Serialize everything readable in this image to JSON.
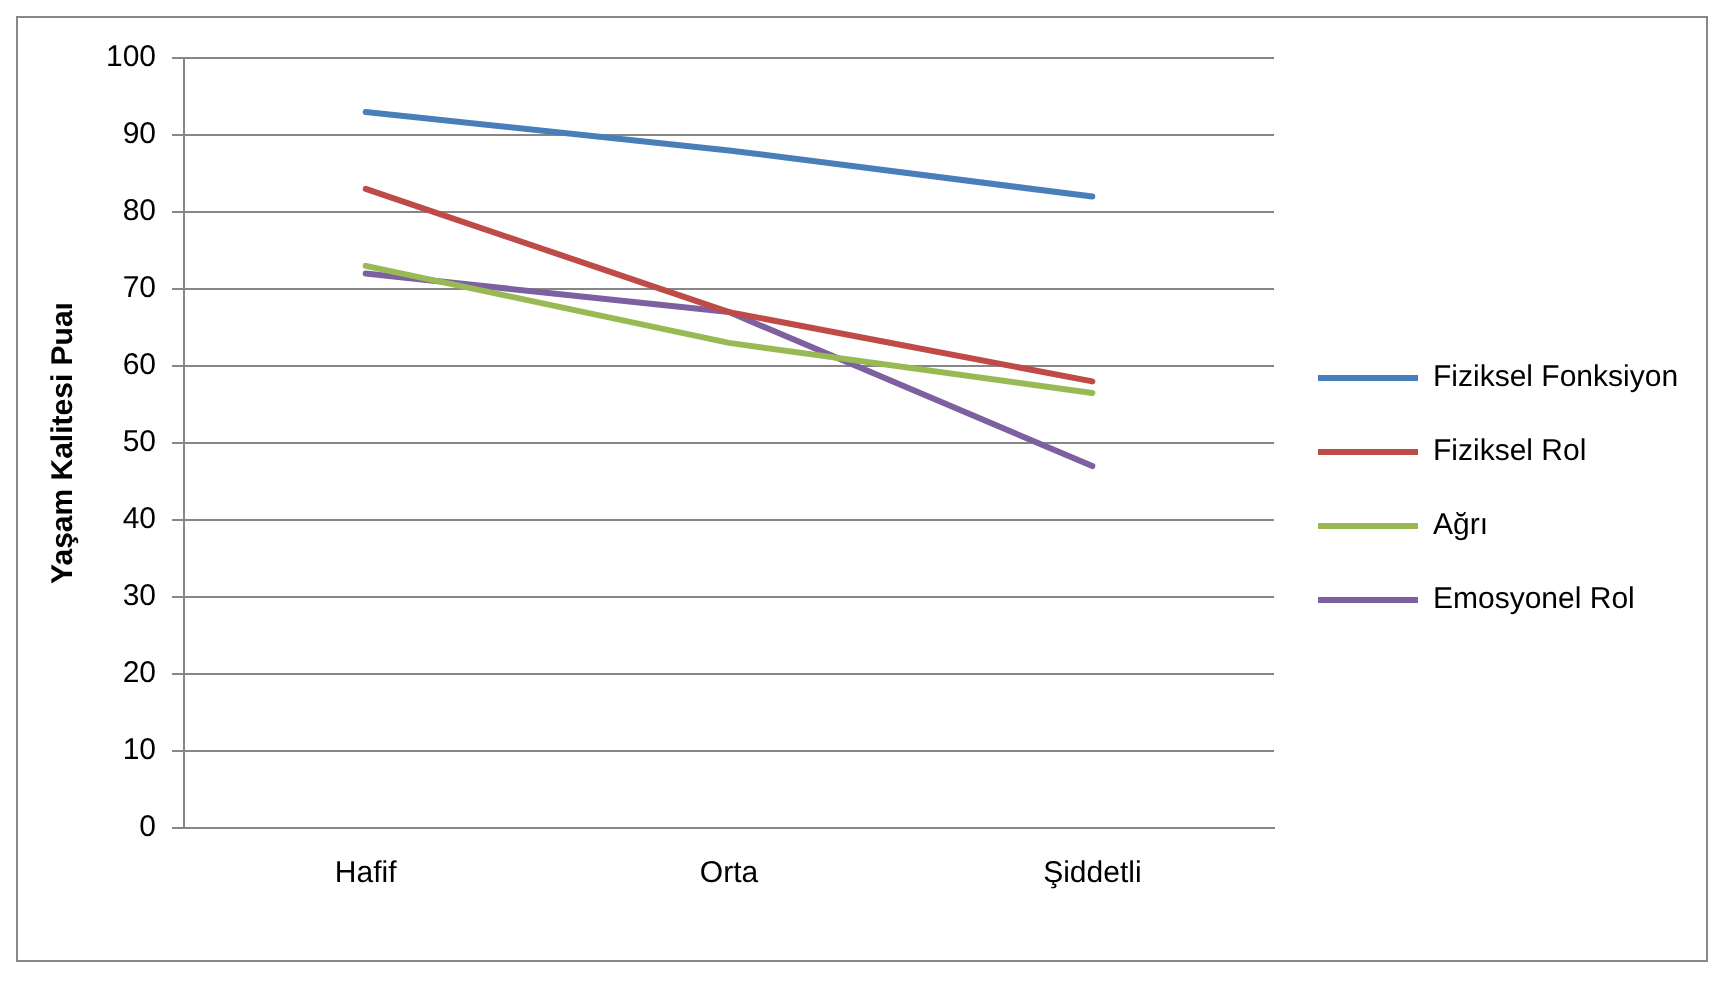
{
  "chart_data": {
    "type": "line",
    "ylabel": "Yaşam Kalitesi Puaı",
    "categories": [
      "Hafif",
      "Orta",
      "Şiddetli"
    ],
    "series": [
      {
        "name": "Fiziksel Fonksiyon",
        "color": "#4a7ebb",
        "values": [
          93,
          88,
          82
        ]
      },
      {
        "name": "Fiziksel Rol",
        "color": "#be4b48",
        "values": [
          83,
          67,
          58
        ]
      },
      {
        "name": "Ağrı",
        "color": "#98b954",
        "values": [
          73,
          63,
          56.5
        ]
      },
      {
        "name": "Emosyonel Rol",
        "color": "#7d60a0",
        "values": [
          72,
          67,
          47
        ]
      }
    ],
    "ylim": [
      0,
      100
    ],
    "yticks": [
      0,
      10,
      20,
      30,
      40,
      50,
      60,
      70,
      80,
      90,
      100
    ],
    "grid": "y",
    "legend": "right",
    "marker": "none",
    "line_style": "solid"
  }
}
